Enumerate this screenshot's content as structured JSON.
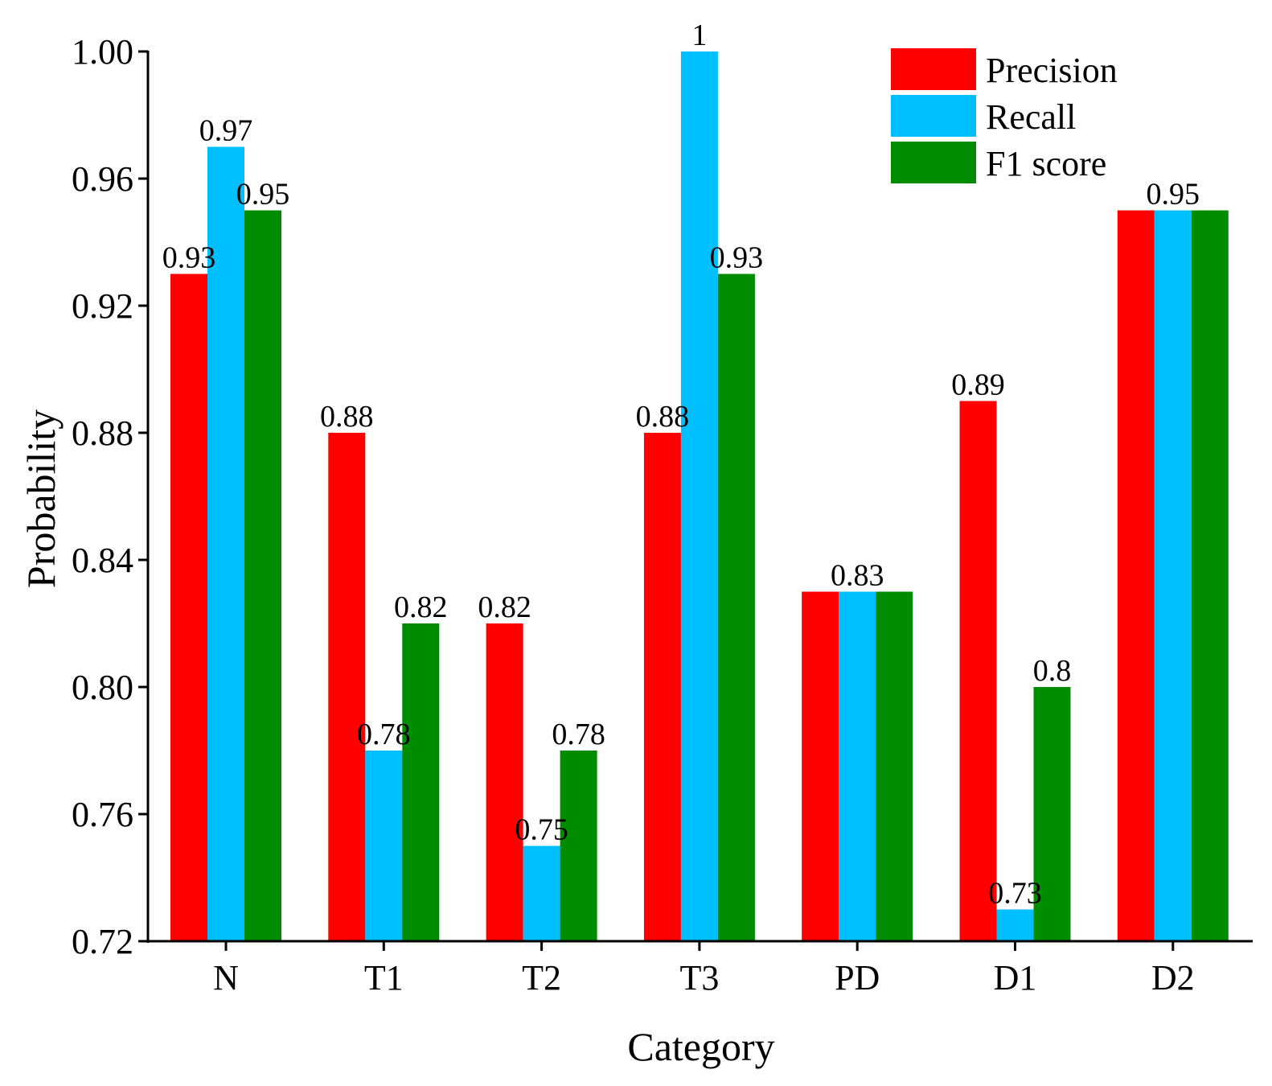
{
  "chart_data": {
    "type": "bar",
    "title": "",
    "xlabel": "Category",
    "ylabel": "Probability",
    "ylim": [
      0.72,
      1.0
    ],
    "yticks": [
      0.72,
      0.76,
      0.8,
      0.84,
      0.88,
      0.92,
      0.96,
      1.0
    ],
    "ytick_labels": [
      "0.72",
      "0.76",
      "0.80",
      "0.84",
      "0.88",
      "0.92",
      "0.96",
      "1.00"
    ],
    "categories": [
      "N",
      "T1",
      "T2",
      "T3",
      "PD",
      "D1",
      "D2"
    ],
    "series": [
      {
        "name": "Precision",
        "color": "#ff0000",
        "values": [
          0.93,
          0.88,
          0.82,
          0.88,
          0.83,
          0.89,
          0.95
        ]
      },
      {
        "name": "Recall",
        "color": "#00bfff",
        "values": [
          0.97,
          0.78,
          0.75,
          1.0,
          0.83,
          0.73,
          0.95
        ]
      },
      {
        "name": "F1 score",
        "color": "#008c00",
        "values": [
          0.95,
          0.82,
          0.78,
          0.93,
          0.83,
          0.8,
          0.95
        ]
      }
    ],
    "data_labels": [
      {
        "category": "N",
        "series": "Precision",
        "text": "0.93"
      },
      {
        "category": "N",
        "series": "Recall",
        "text": "0.97"
      },
      {
        "category": "N",
        "series": "F1 score",
        "text": "0.95"
      },
      {
        "category": "T1",
        "series": "Precision",
        "text": "0.88"
      },
      {
        "category": "T1",
        "series": "Recall",
        "text": "0.78"
      },
      {
        "category": "T1",
        "series": "F1 score",
        "text": "0.82"
      },
      {
        "category": "T2",
        "series": "Precision",
        "text": "0.82"
      },
      {
        "category": "T2",
        "series": "Recall",
        "text": "0.75"
      },
      {
        "category": "T2",
        "series": "F1 score",
        "text": "0.78"
      },
      {
        "category": "T3",
        "series": "Precision",
        "text": "0.88"
      },
      {
        "category": "T3",
        "series": "Recall",
        "text": "1"
      },
      {
        "category": "T3",
        "series": "F1 score",
        "text": "0.93"
      },
      {
        "category": "PD",
        "series": "Recall",
        "text": "0.83"
      },
      {
        "category": "D1",
        "series": "Precision",
        "text": "0.89"
      },
      {
        "category": "D1",
        "series": "Recall",
        "text": "0.73"
      },
      {
        "category": "D1",
        "series": "F1 score",
        "text": "0.8"
      },
      {
        "category": "D2",
        "series": "Recall",
        "text": "0.95"
      }
    ],
    "legend": "top-right",
    "grid": false
  }
}
